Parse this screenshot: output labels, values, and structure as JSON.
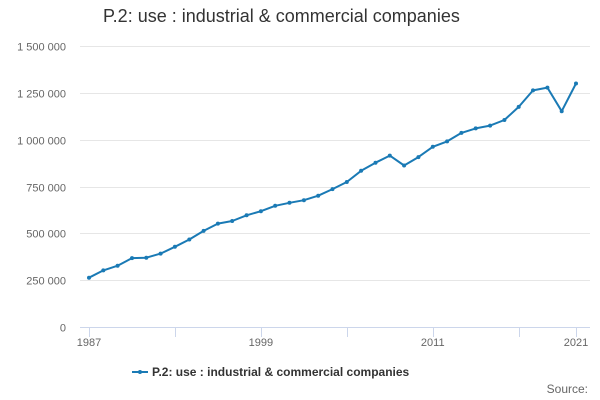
{
  "chart_data": {
    "type": "line",
    "title": "P.2: use : industrial & commercial companies",
    "xlabel": "",
    "ylabel": "",
    "xlim": [
      1987,
      2021
    ],
    "ylim": [
      0,
      1500000
    ],
    "yticks": [
      0,
      250000,
      500000,
      750000,
      1000000,
      1250000,
      1500000
    ],
    "ytick_labels": [
      "0",
      "250 000",
      "500 000",
      "750 000",
      "1 000 000",
      "1 250 000",
      "1 500 000"
    ],
    "xticks_minor": [
      1987,
      1993,
      1999,
      2005,
      2011,
      2017,
      2021
    ],
    "xtick_labels": [
      {
        "year": 1987,
        "label": "1987"
      },
      {
        "year": 1999,
        "label": "1999"
      },
      {
        "year": 2011,
        "label": "2011"
      },
      {
        "year": 2021,
        "label": "2021"
      }
    ],
    "color": "#1a7ab5",
    "legend_position": "bottom-center",
    "series": [
      {
        "name": "P.2: use : industrial & commercial companies",
        "x": [
          1987,
          1988,
          1989,
          1990,
          1991,
          1992,
          1993,
          1994,
          1995,
          1996,
          1997,
          1998,
          1999,
          2000,
          2001,
          2002,
          2003,
          2004,
          2005,
          2006,
          2007,
          2008,
          2009,
          2010,
          2011,
          2012,
          2013,
          2014,
          2015,
          2016,
          2017,
          2018,
          2019,
          2020,
          2021
        ],
        "values": [
          263000,
          302000,
          327000,
          368000,
          370000,
          392000,
          428000,
          467000,
          513000,
          552000,
          566000,
          596000,
          618000,
          647000,
          663000,
          677000,
          701000,
          736000,
          774000,
          834000,
          877000,
          915000,
          862000,
          907000,
          962000,
          991000,
          1036000,
          1060000,
          1075000,
          1105000,
          1175000,
          1263000,
          1278000,
          1152000,
          1300000
        ]
      }
    ]
  },
  "legend": {
    "label": "P.2: use : industrial & commercial companies"
  },
  "source": {
    "label": "Source:"
  }
}
